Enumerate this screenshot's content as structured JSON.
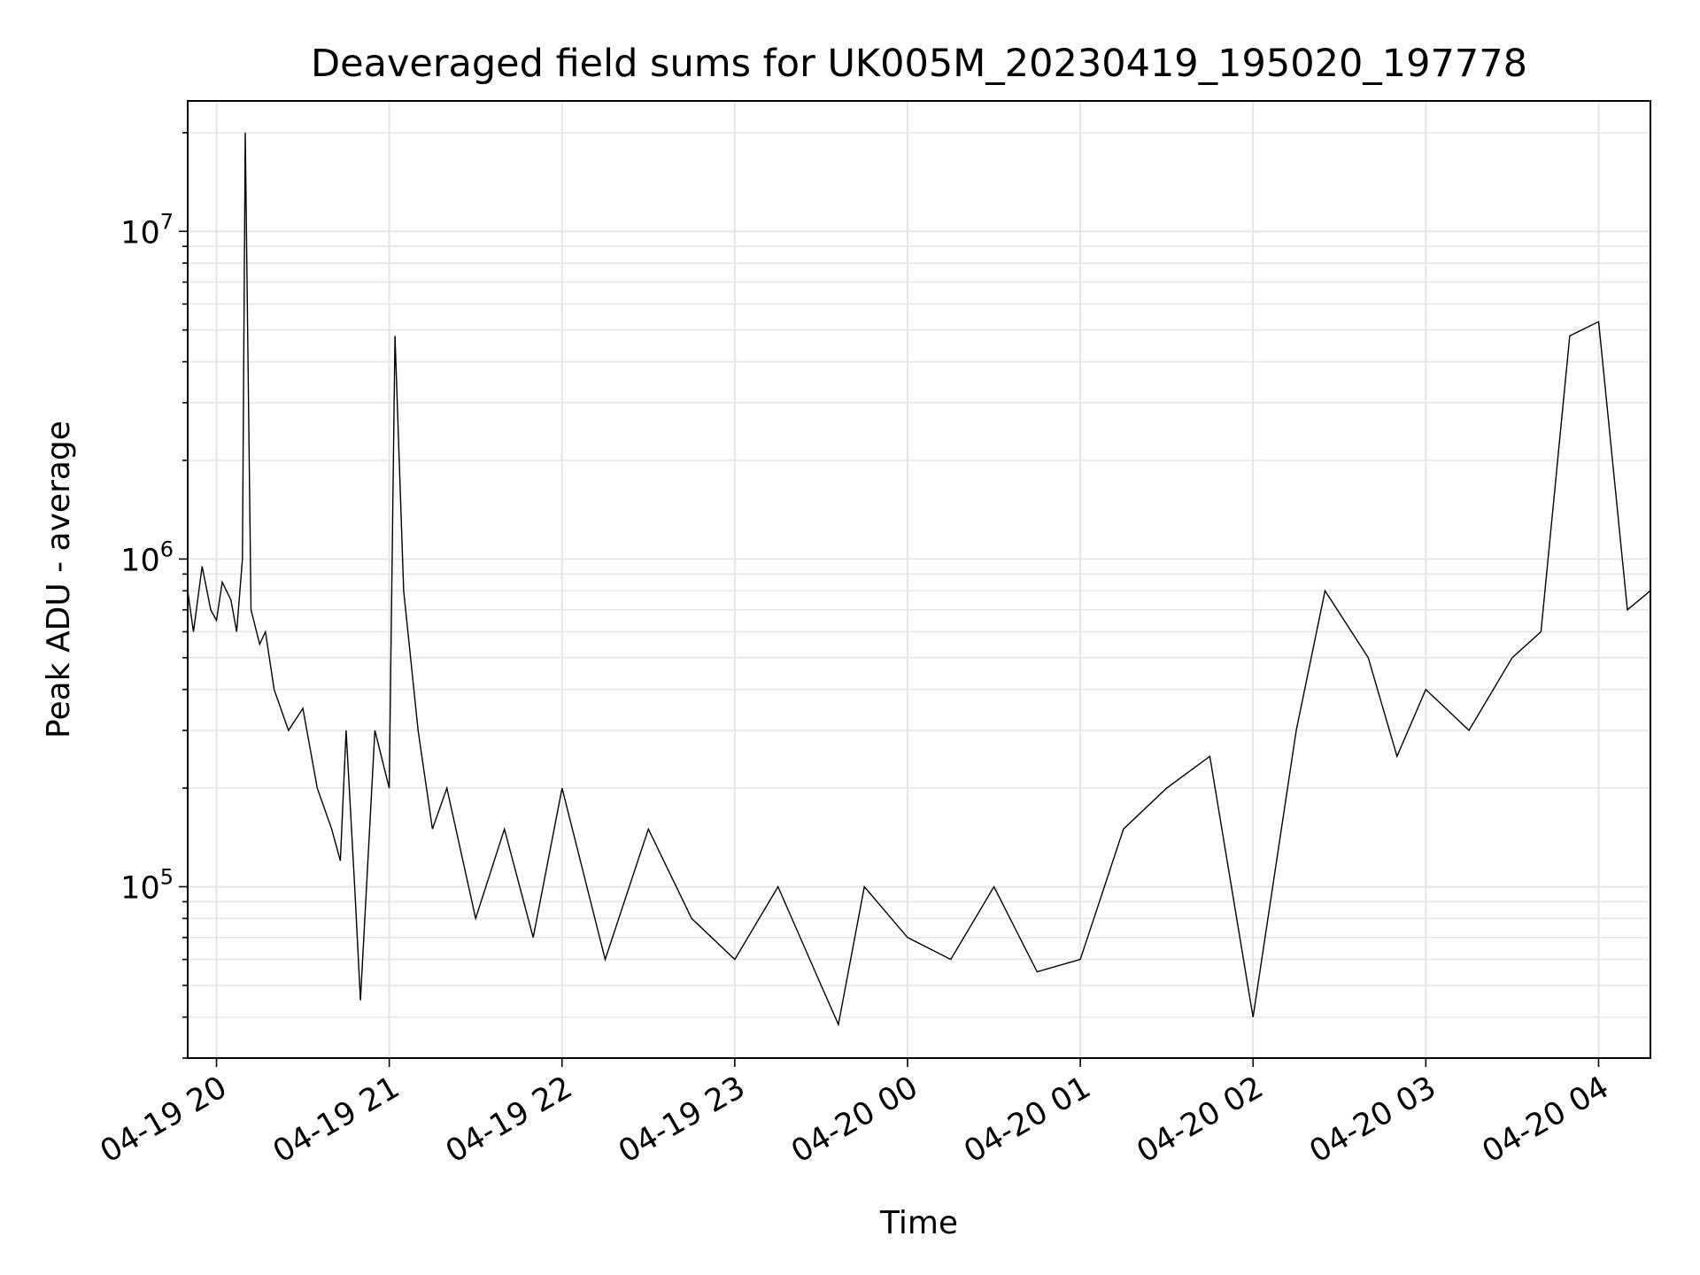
{
  "chart_data": {
    "type": "line",
    "title": "Deaveraged field sums for UK005M_20230419_195020_197778",
    "xlabel": "Time",
    "ylabel": "Peak ADU - average",
    "yscale": "log",
    "ylim": [
      30000,
      25000000
    ],
    "xlim": [
      "04-19 19:50",
      "04-20 04:18"
    ],
    "grid": true,
    "line_color": "#000000",
    "x_ticks": [
      "04-19 20",
      "04-19 21",
      "04-19 22",
      "04-19 23",
      "04-20 00",
      "04-20 01",
      "04-20 02",
      "04-20 03",
      "04-20 04"
    ],
    "y_ticks": [
      {
        "base": "10",
        "exp": "5",
        "value": 100000
      },
      {
        "base": "10",
        "exp": "6",
        "value": 1000000
      },
      {
        "base": "10",
        "exp": "7",
        "value": 10000000
      }
    ],
    "series": [
      {
        "x": [
          "04-19 19:50",
          "04-19 19:52",
          "04-19 19:55",
          "04-19 19:58",
          "04-19 20:00",
          "04-19 20:02",
          "04-19 20:05",
          "04-19 20:07",
          "04-19 20:09",
          "04-19 20:10",
          "04-19 20:12",
          "04-19 20:15",
          "04-19 20:17",
          "04-19 20:20",
          "04-19 20:25",
          "04-19 20:30",
          "04-19 20:35",
          "04-19 20:40",
          "04-19 20:43",
          "04-19 20:45",
          "04-19 20:48",
          "04-19 20:50",
          "04-19 20:55",
          "04-19 21:00",
          "04-19 21:02",
          "04-19 21:05",
          "04-19 21:10",
          "04-19 21:15",
          "04-19 21:20",
          "04-19 21:30",
          "04-19 21:40",
          "04-19 21:50",
          "04-19 22:00",
          "04-19 22:15",
          "04-19 22:30",
          "04-19 22:45",
          "04-19 23:00",
          "04-19 23:15",
          "04-19 23:30",
          "04-19 23:36",
          "04-19 23:45",
          "04-20 00:00",
          "04-20 00:15",
          "04-20 00:30",
          "04-20 00:45",
          "04-20 01:00",
          "04-20 01:15",
          "04-20 01:30",
          "04-20 01:45",
          "04-20 02:00",
          "04-20 02:15",
          "04-20 02:25",
          "04-20 02:40",
          "04-20 02:50",
          "04-20 03:00",
          "04-20 03:15",
          "04-20 03:30",
          "04-20 03:40",
          "04-20 03:50",
          "04-20 04:00",
          "04-20 04:10",
          "04-20 04:18"
        ],
        "y": [
          800000,
          600000,
          950000,
          700000,
          650000,
          850000,
          750000,
          600000,
          1000000,
          20000000,
          700000,
          550000,
          600000,
          400000,
          300000,
          350000,
          200000,
          150000,
          120000,
          300000,
          100000,
          45000,
          300000,
          200000,
          4800000,
          800000,
          300000,
          150000,
          200000,
          80000,
          150000,
          70000,
          200000,
          60000,
          150000,
          80000,
          60000,
          100000,
          50000,
          38000,
          100000,
          70000,
          60000,
          100000,
          55000,
          60000,
          150000,
          200000,
          250000,
          40000,
          300000,
          800000,
          500000,
          250000,
          400000,
          300000,
          500000,
          600000,
          4800000,
          5300000,
          700000,
          800000
        ]
      }
    ]
  }
}
